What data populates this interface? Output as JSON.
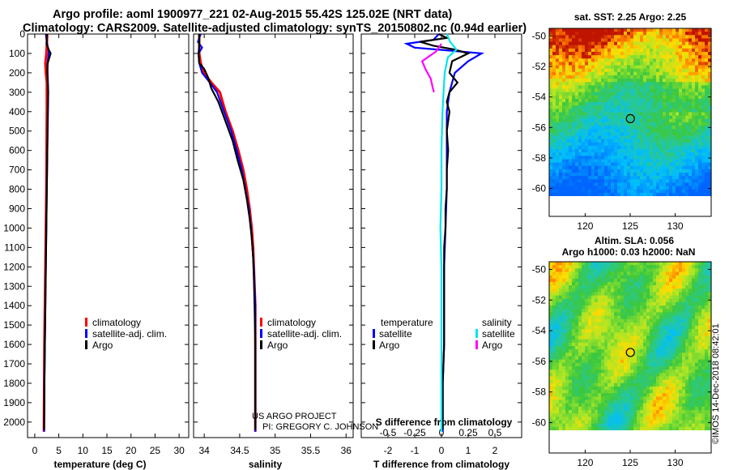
{
  "header": {
    "line1": "Argo profile: aoml 1900977_221 02-Aug-2015 55.42S 125.02E (NRT data)",
    "line2": "Climatology: CARS2009. Satellite-adjusted climatology: synTS_20150802.nc (0.94d earlier)"
  },
  "stamp": "©IMOS 14-Dec-2018 08:42:01",
  "credit": {
    "line1": "US ARGO PROJECT",
    "line2": "PI: GREGORY C. JOHNSON"
  },
  "colors": {
    "climatology": "#ff0000",
    "satellite": "#0000ff",
    "argo": "#000000",
    "satellite_salinity": "#00e5ee",
    "argo_salinity": "#ff00ff"
  },
  "chart_data": [
    {
      "type": "line",
      "name": "temperature panel",
      "xlabel": "temperature (deg C)",
      "ylabel": "",
      "xlim": [
        -1.5,
        32
      ],
      "ylim": [
        2080,
        0
      ],
      "xticks": [
        0,
        5,
        10,
        15,
        20,
        25,
        30
      ],
      "yticks": [
        0,
        100,
        200,
        300,
        400,
        500,
        600,
        700,
        800,
        900,
        1000,
        1100,
        1200,
        1300,
        1400,
        1500,
        1600,
        1700,
        1800,
        1900,
        2000
      ],
      "legend": [
        "climatology",
        "satellite-adj. clim.",
        "Argo"
      ],
      "legend_position": "lower-right",
      "series": [
        {
          "name": "climatology",
          "color": "#ff0000",
          "points": [
            [
              2.6,
              0
            ],
            [
              2.5,
              50
            ],
            [
              2.4,
              100
            ],
            [
              2.2,
              150
            ],
            [
              2.3,
              200
            ],
            [
              2.5,
              250
            ],
            [
              2.5,
              400
            ],
            [
              2.45,
              600
            ],
            [
              2.4,
              800
            ],
            [
              2.3,
              1000
            ],
            [
              2.2,
              1200
            ],
            [
              2.1,
              1400
            ],
            [
              2.0,
              1600
            ],
            [
              1.95,
              1800
            ],
            [
              1.9,
              2000
            ],
            [
              1.9,
              2050
            ]
          ]
        },
        {
          "name": "satellite-adj. clim.",
          "color": "#0000ff",
          "points": [
            [
              2.3,
              0
            ],
            [
              2.5,
              40
            ],
            [
              2.9,
              90
            ],
            [
              2.8,
              120
            ],
            [
              2.6,
              160
            ],
            [
              2.7,
              220
            ],
            [
              2.8,
              300
            ],
            [
              2.75,
              400
            ],
            [
              2.6,
              600
            ],
            [
              2.5,
              800
            ],
            [
              2.4,
              1000
            ],
            [
              2.3,
              1200
            ],
            [
              2.2,
              1400
            ],
            [
              2.1,
              1600
            ],
            [
              2.0,
              1800
            ],
            [
              1.95,
              2000
            ],
            [
              1.95,
              2050
            ]
          ]
        },
        {
          "name": "Argo",
          "color": "#000000",
          "points": [
            [
              2.5,
              0
            ],
            [
              2.45,
              50
            ],
            [
              2.9,
              80
            ],
            [
              3.3,
              100
            ],
            [
              2.7,
              150
            ],
            [
              2.6,
              200
            ],
            [
              2.8,
              300
            ],
            [
              2.7,
              400
            ],
            [
              2.6,
              600
            ],
            [
              2.5,
              800
            ],
            [
              2.4,
              1000
            ],
            [
              2.3,
              1200
            ],
            [
              2.2,
              1400
            ],
            [
              2.1,
              1600
            ],
            [
              2.0,
              1800
            ],
            [
              1.95,
              2000
            ],
            [
              1.95,
              2040
            ]
          ]
        }
      ]
    },
    {
      "type": "line",
      "name": "salinity panel",
      "xlabel": "salinity",
      "ylabel": "",
      "xlim": [
        33.85,
        36.1
      ],
      "ylim": [
        2080,
        0
      ],
      "xticks": [
        34,
        34.5,
        35,
        35.5,
        36
      ],
      "xticklabels": [
        "34",
        "34.5",
        "35",
        "35.5",
        "36"
      ],
      "legend": [
        "climatology",
        "satellite-adj. clim.",
        "Argo"
      ],
      "legend_position": "lower-right",
      "series": [
        {
          "name": "climatology",
          "color": "#ff0000",
          "points": [
            [
              33.93,
              0
            ],
            [
              33.93,
              100
            ],
            [
              33.95,
              150
            ],
            [
              34.0,
              200
            ],
            [
              34.1,
              250
            ],
            [
              34.22,
              300
            ],
            [
              34.3,
              400
            ],
            [
              34.4,
              500
            ],
            [
              34.48,
              600
            ],
            [
              34.55,
              700
            ],
            [
              34.6,
              800
            ],
            [
              34.64,
              900
            ],
            [
              34.67,
              1000
            ],
            [
              34.69,
              1100
            ],
            [
              34.7,
              1200
            ],
            [
              34.71,
              1300
            ],
            [
              34.72,
              1400
            ],
            [
              34.72,
              1600
            ],
            [
              34.72,
              1800
            ],
            [
              34.72,
              2000
            ],
            [
              34.72,
              2050
            ]
          ]
        },
        {
          "name": "satellite-adj. clim.",
          "color": "#0000ff",
          "points": [
            [
              33.95,
              0
            ],
            [
              33.91,
              40
            ],
            [
              33.97,
              70
            ],
            [
              33.92,
              100
            ],
            [
              33.93,
              150
            ],
            [
              33.97,
              200
            ],
            [
              34.08,
              250
            ],
            [
              34.18,
              300
            ],
            [
              34.28,
              400
            ],
            [
              34.38,
              500
            ],
            [
              34.46,
              600
            ],
            [
              34.53,
              700
            ],
            [
              34.58,
              800
            ],
            [
              34.63,
              900
            ],
            [
              34.66,
              1000
            ],
            [
              34.68,
              1100
            ],
            [
              34.7,
              1200
            ],
            [
              34.71,
              1300
            ],
            [
              34.72,
              1400
            ],
            [
              34.72,
              1600
            ],
            [
              34.72,
              1800
            ],
            [
              34.72,
              2000
            ],
            [
              34.72,
              2050
            ]
          ]
        },
        {
          "name": "Argo",
          "color": "#000000",
          "points": [
            [
              33.93,
              0
            ],
            [
              33.93,
              60
            ],
            [
              33.92,
              100
            ],
            [
              33.93,
              150
            ],
            [
              34.0,
              180
            ],
            [
              34.05,
              220
            ],
            [
              34.1,
              280
            ],
            [
              34.2,
              350
            ],
            [
              34.3,
              450
            ],
            [
              34.4,
              550
            ],
            [
              34.47,
              650
            ],
            [
              34.55,
              750
            ],
            [
              34.6,
              850
            ],
            [
              34.64,
              950
            ],
            [
              34.67,
              1050
            ],
            [
              34.69,
              1150
            ],
            [
              34.7,
              1250
            ],
            [
              34.71,
              1400
            ],
            [
              34.72,
              1600
            ],
            [
              34.72,
              1800
            ],
            [
              34.72,
              2000
            ],
            [
              34.72,
              2040
            ]
          ]
        }
      ]
    },
    {
      "type": "line",
      "name": "difference panel",
      "xlabel": "T difference from climatology",
      "xlabel_top": "S difference from climatology",
      "xlim": [
        -3,
        3
      ],
      "ylim": [
        2080,
        0
      ],
      "xticks": [
        -2,
        -1,
        0,
        1,
        2
      ],
      "xticklabels": [
        "-2",
        "-1",
        "0",
        "1",
        "2"
      ],
      "sticks": [
        -0.5,
        -0.25,
        0,
        0.25,
        0.5
      ],
      "sticklabels": [
        "-0.5",
        "-0.25",
        "0",
        "0.25",
        "0.5"
      ],
      "legend_groups": [
        {
          "title": "temperature",
          "entries": [
            "satellite",
            "Argo"
          ]
        },
        {
          "title": "salinity",
          "entries": [
            "satellite",
            "Argo"
          ]
        }
      ],
      "series": [
        {
          "name": "temperature satellite",
          "color": "#0000ff",
          "points": [
            [
              -0.1,
              0
            ],
            [
              -0.3,
              30
            ],
            [
              -1.3,
              50
            ],
            [
              -1.0,
              70
            ],
            [
              0.3,
              85
            ],
            [
              1.5,
              100
            ],
            [
              1.0,
              140
            ],
            [
              0.5,
              200
            ],
            [
              0.3,
              300
            ],
            [
              0.2,
              400
            ],
            [
              0.2,
              600
            ],
            [
              0.2,
              800
            ],
            [
              0.15,
              1000
            ],
            [
              0.1,
              1200
            ],
            [
              0.1,
              1400
            ],
            [
              0.1,
              1600
            ],
            [
              0.05,
              1800
            ],
            [
              0.05,
              2000
            ],
            [
              0.05,
              2050
            ]
          ]
        },
        {
          "name": "temperature Argo",
          "color": "#000000",
          "points": [
            [
              -0.1,
              0
            ],
            [
              0.2,
              20
            ],
            [
              -0.8,
              40
            ],
            [
              -0.3,
              60
            ],
            [
              0.5,
              80
            ],
            [
              1.0,
              100
            ],
            [
              0.4,
              140
            ],
            [
              0.3,
              200
            ],
            [
              0.6,
              250
            ],
            [
              0.3,
              300
            ],
            [
              0.2,
              350
            ],
            [
              0.3,
              400
            ],
            [
              0.2,
              500
            ],
            [
              0.25,
              600
            ],
            [
              0.2,
              700
            ],
            [
              0.2,
              800
            ],
            [
              0.15,
              900
            ],
            [
              0.15,
              1000
            ],
            [
              0.1,
              1100
            ],
            [
              0.1,
              1200
            ],
            [
              0.1,
              1400
            ],
            [
              0.1,
              1600
            ],
            [
              0.05,
              1800
            ],
            [
              0.05,
              2000
            ],
            [
              0.05,
              2040
            ]
          ]
        },
        {
          "name": "salinity satellite",
          "color": "#00e5ee",
          "points": [
            [
              0.05,
              0
            ],
            [
              0.08,
              40
            ],
            [
              0.14,
              80
            ],
            [
              0.06,
              120
            ],
            [
              0.03,
              200
            ],
            [
              0.02,
              300
            ],
            [
              0.01,
              400
            ],
            [
              0.0,
              600
            ],
            [
              0.0,
              800
            ],
            [
              -0.01,
              1000
            ],
            [
              0.0,
              1200
            ],
            [
              0.0,
              1400
            ],
            [
              0.0,
              1600
            ],
            [
              0.0,
              1800
            ],
            [
              0.0,
              2000
            ],
            [
              0.0,
              2050
            ]
          ]
        },
        {
          "name": "salinity Argo",
          "color": "#ff00ff",
          "points": [
            [
              0.0,
              50
            ],
            [
              -0.05,
              90
            ],
            [
              -0.18,
              140
            ],
            [
              -0.15,
              180
            ],
            [
              -0.1,
              230
            ],
            [
              -0.08,
              280
            ],
            [
              -0.07,
              300
            ]
          ]
        }
      ]
    },
    {
      "type": "heatmap",
      "name": "SST map",
      "title": "sat. SST: 2.25 Argo: 2.25",
      "xlim": [
        116,
        134
      ],
      "ylim": [
        -60.5,
        -49.5
      ],
      "xticks": [
        120,
        125,
        130
      ],
      "yticks": [
        -50,
        -52,
        -54,
        -56,
        -58,
        -60
      ],
      "marker": {
        "x": 125.02,
        "y": -55.42
      }
    },
    {
      "type": "heatmap",
      "name": "SLA map",
      "title": "Altim. SLA: 0.056",
      "subtitle": "Argo h1000: 0.03 h2000: NaN",
      "xlim": [
        116,
        134
      ],
      "ylim": [
        -60.5,
        -49.5
      ],
      "xticks": [
        120,
        125,
        130
      ],
      "yticks": [
        -50,
        -52,
        -54,
        -56,
        -58,
        -60
      ],
      "marker": {
        "x": 125.02,
        "y": -55.42
      }
    }
  ]
}
